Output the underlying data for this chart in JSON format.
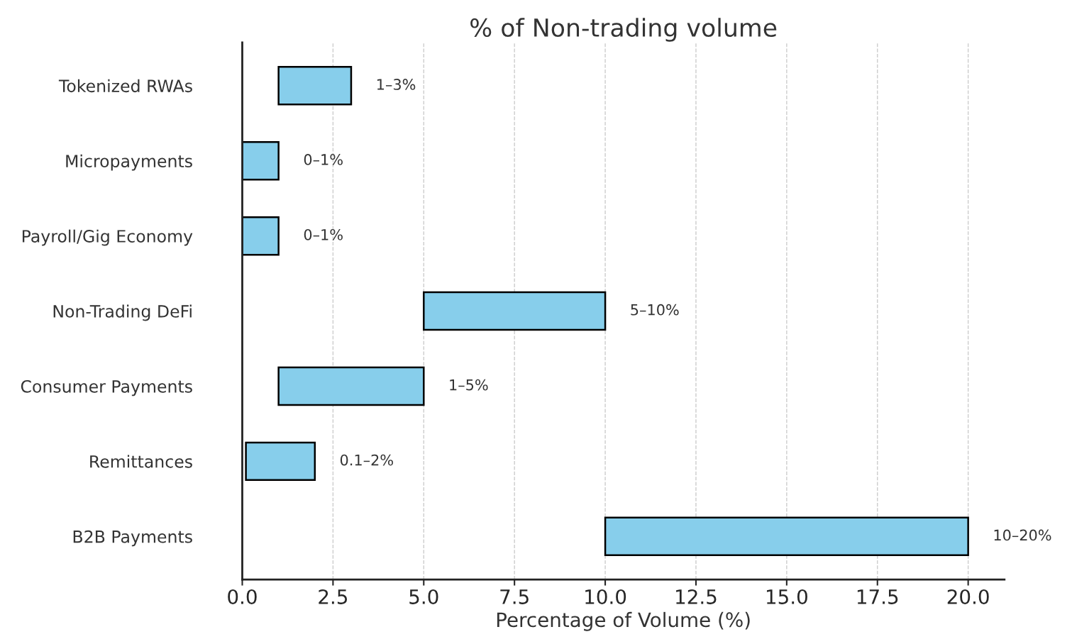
{
  "chart_data": {
    "type": "bar",
    "orientation": "horizontal",
    "title": "% of Non-trading volume",
    "xlabel": "Percentage of Volume (%)",
    "categories": [
      "Tokenized RWAs",
      "Micropayments",
      "Payroll/Gig Economy",
      "Non-Trading DeFi",
      "Consumer Payments",
      "Remittances",
      "B2B Payments"
    ],
    "base": [
      1,
      0,
      0,
      5,
      1,
      0.1,
      10
    ],
    "values": [
      2,
      1,
      1,
      5,
      4,
      1.9,
      10
    ],
    "annotations": [
      {
        "text": "1–3%",
        "x": 3,
        "y": "Tokenized RWAs"
      },
      {
        "text": "0–1%",
        "x": 1,
        "y": "Micropayments"
      },
      {
        "text": "0–1%",
        "x": 1,
        "y": "Payroll/Gig Economy"
      },
      {
        "text": "5–10%",
        "x": 10,
        "y": "Non-Trading DeFi"
      },
      {
        "text": "1–5%",
        "x": 5,
        "y": "Consumer Payments"
      },
      {
        "text": "0.1–2%",
        "x": 2,
        "y": "Remittances"
      },
      {
        "text": "10–20%",
        "x": 20,
        "y": "B2B Payments"
      }
    ],
    "color": "#87ceeb",
    "xlim": [
      0,
      21
    ],
    "xticks": [
      {
        "value": 0,
        "label": "0.0"
      },
      {
        "value": 2.5,
        "label": "2.5"
      },
      {
        "value": 5,
        "label": "5.0"
      },
      {
        "value": 7.5,
        "label": "7.5"
      },
      {
        "value": 10,
        "label": "10.0"
      },
      {
        "value": 12.5,
        "label": "12.5"
      },
      {
        "value": 15,
        "label": "15.0"
      },
      {
        "value": 17.5,
        "label": "17.5"
      },
      {
        "value": 20,
        "label": "20.0"
      }
    ],
    "grid": "x",
    "legend": false
  }
}
